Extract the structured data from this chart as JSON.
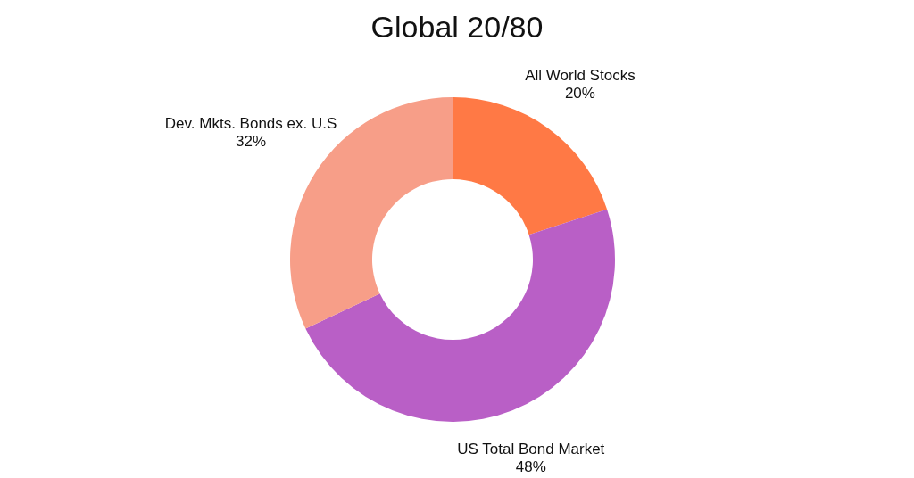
{
  "chart_data": {
    "type": "donut",
    "title": "Global 20/80",
    "categories": [
      "All World Stocks",
      "US Total Bond Market",
      "Dev. Mkts. Bonds ex. U.S"
    ],
    "values": [
      20,
      48,
      32
    ],
    "colors": [
      "#ff7945",
      "#b95fc6",
      "#f79e88"
    ],
    "value_labels": [
      "20%",
      "48%",
      "32%"
    ]
  }
}
